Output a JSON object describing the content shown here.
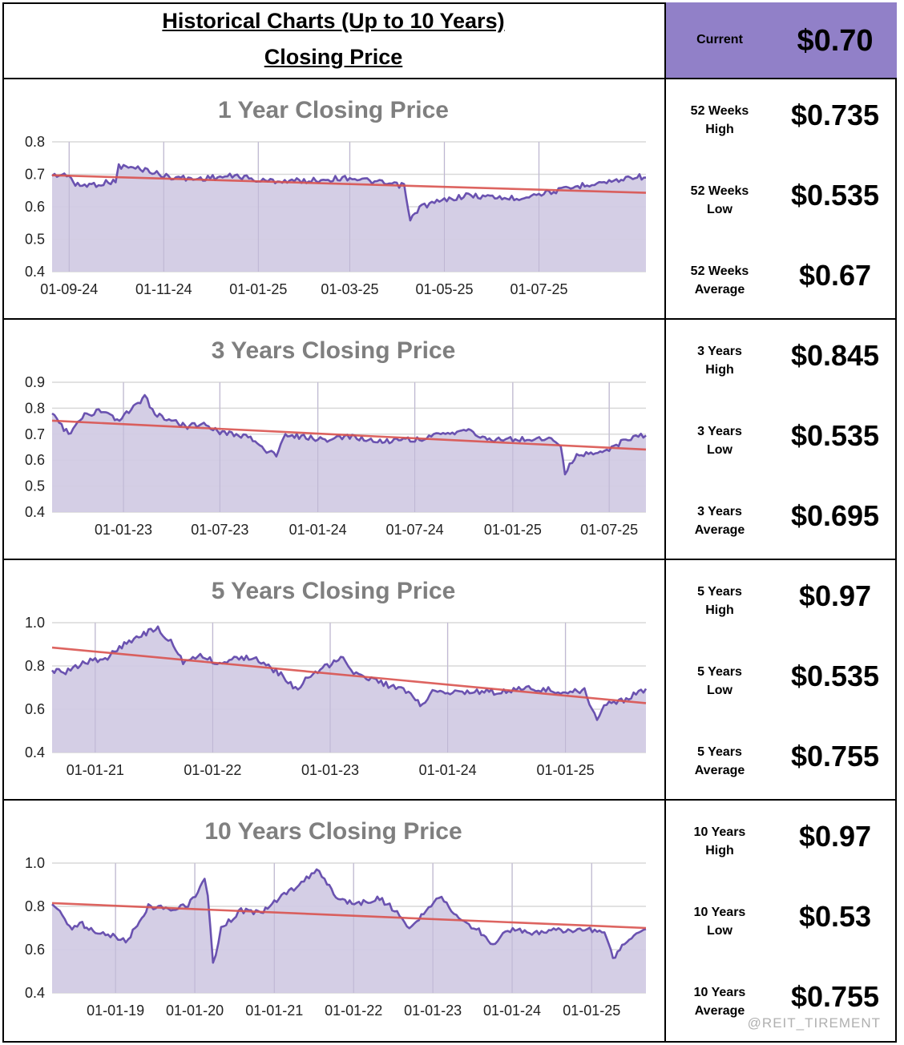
{
  "header": {
    "title_line1": "Historical Charts (Up to 10 Years)",
    "title_line2": "Closing Price",
    "current_label": "Current",
    "current_value": "$0.70",
    "accent_color": "#9180c8"
  },
  "watermark": "@REIT_TIREMENT",
  "colors": {
    "line": "#6a52b0",
    "fill": "#d2cbe4",
    "trend": "#d9534f",
    "grid": "#d9d9d9"
  },
  "rows": [
    {
      "title": "1 Year Closing Price",
      "stats": [
        {
          "label1": "52 Weeks",
          "label2": "High",
          "value": "$0.735"
        },
        {
          "label1": "52 Weeks",
          "label2": "Low",
          "value": "$0.535"
        },
        {
          "label1": "52 Weeks",
          "label2": "Average",
          "value": "$0.67"
        }
      ]
    },
    {
      "title": "3 Years Closing Price",
      "stats": [
        {
          "label1": "3 Years",
          "label2": "High",
          "value": "$0.845"
        },
        {
          "label1": "3 Years",
          "label2": "Low",
          "value": "$0.535"
        },
        {
          "label1": "3 Years",
          "label2": "Average",
          "value": "$0.695"
        }
      ]
    },
    {
      "title": "5 Years Closing Price",
      "stats": [
        {
          "label1": "5 Years",
          "label2": "High",
          "value": "$0.97"
        },
        {
          "label1": "5 Years",
          "label2": "Low",
          "value": "$0.535"
        },
        {
          "label1": "5 Years",
          "label2": "Average",
          "value": "$0.755"
        }
      ]
    },
    {
      "title": "10 Years Closing Price",
      "stats": [
        {
          "label1": "10 Years",
          "label2": "High",
          "value": "$0.97"
        },
        {
          "label1": "10 Years",
          "label2": "Low",
          "value": "$0.53"
        },
        {
          "label1": "10 Years",
          "label2": "Average",
          "value": "$0.755"
        }
      ]
    }
  ],
  "chart_data": [
    {
      "type": "area",
      "title": "1 Year Closing Price",
      "ylim": [
        0.4,
        0.8
      ],
      "yticks": [
        "0.4",
        "0.5",
        "0.6",
        "0.7",
        "0.8"
      ],
      "xlim": [
        "2024-08-21",
        "2025-09-08"
      ],
      "xticks": [
        {
          "label": "01-09-24",
          "x": "2024-09-01"
        },
        {
          "label": "01-11-24",
          "x": "2024-11-01"
        },
        {
          "label": "01-01-25",
          "x": "2025-01-01"
        },
        {
          "label": "01-03-25",
          "x": "2025-03-01"
        },
        {
          "label": "01-05-25",
          "x": "2025-05-01"
        },
        {
          "label": "01-07-25",
          "x": "2025-07-01"
        }
      ],
      "series": [
        {
          "points": [
            [
              "2024-08-21",
              0.695
            ],
            [
              "2024-09-01",
              0.7
            ],
            [
              "2024-09-05",
              0.665
            ],
            [
              "2024-09-20",
              0.67
            ],
            [
              "2024-10-01",
              0.68
            ],
            [
              "2024-10-03",
              0.725
            ],
            [
              "2024-10-20",
              0.715
            ],
            [
              "2024-11-01",
              0.695
            ],
            [
              "2024-11-20",
              0.685
            ],
            [
              "2024-12-01",
              0.69
            ],
            [
              "2024-12-20",
              0.695
            ],
            [
              "2025-01-01",
              0.68
            ],
            [
              "2025-02-01",
              0.68
            ],
            [
              "2025-03-01",
              0.69
            ],
            [
              "2025-03-25",
              0.67
            ],
            [
              "2025-04-05",
              0.665
            ],
            [
              "2025-04-09",
              0.555
            ],
            [
              "2025-04-15",
              0.6
            ],
            [
              "2025-05-01",
              0.62
            ],
            [
              "2025-05-15",
              0.635
            ],
            [
              "2025-06-01",
              0.63
            ],
            [
              "2025-06-15",
              0.625
            ],
            [
              "2025-07-01",
              0.64
            ],
            [
              "2025-07-20",
              0.655
            ],
            [
              "2025-08-01",
              0.67
            ],
            [
              "2025-08-20",
              0.68
            ],
            [
              "2025-09-01",
              0.695
            ],
            [
              "2025-09-08",
              0.69
            ]
          ]
        }
      ],
      "trend": [
        [
          "2024-08-21",
          0.697
        ],
        [
          "2025-09-08",
          0.643
        ]
      ]
    },
    {
      "type": "area",
      "title": "3 Years Closing Price",
      "ylim": [
        0.4,
        0.9
      ],
      "yticks": [
        "0.4",
        "0.5",
        "0.6",
        "0.7",
        "0.8",
        "0.9"
      ],
      "xlim": [
        "2022-08-20",
        "2025-09-08"
      ],
      "xticks": [
        {
          "label": "01-01-23",
          "x": "2023-01-01"
        },
        {
          "label": "01-07-23",
          "x": "2023-07-01"
        },
        {
          "label": "01-01-24",
          "x": "2024-01-01"
        },
        {
          "label": "01-07-24",
          "x": "2024-07-01"
        },
        {
          "label": "01-01-25",
          "x": "2025-01-01"
        },
        {
          "label": "01-07-25",
          "x": "2025-07-01"
        }
      ],
      "series": [
        {
          "points": [
            [
              "2022-08-20",
              0.78
            ],
            [
              "2022-09-20",
              0.7
            ],
            [
              "2022-10-20",
              0.77
            ],
            [
              "2022-11-20",
              0.79
            ],
            [
              "2022-12-20",
              0.75
            ],
            [
              "2023-01-20",
              0.8
            ],
            [
              "2023-02-10",
              0.845
            ],
            [
              "2023-03-01",
              0.78
            ],
            [
              "2023-04-01",
              0.75
            ],
            [
              "2023-05-01",
              0.73
            ],
            [
              "2023-06-01",
              0.74
            ],
            [
              "2023-07-01",
              0.71
            ],
            [
              "2023-08-01",
              0.7
            ],
            [
              "2023-09-01",
              0.68
            ],
            [
              "2023-10-01",
              0.63
            ],
            [
              "2023-10-15",
              0.615
            ],
            [
              "2023-11-01",
              0.7
            ],
            [
              "2023-12-01",
              0.69
            ],
            [
              "2024-01-01",
              0.68
            ],
            [
              "2024-02-01",
              0.68
            ],
            [
              "2024-03-01",
              0.69
            ],
            [
              "2024-04-01",
              0.68
            ],
            [
              "2024-05-01",
              0.67
            ],
            [
              "2024-06-01",
              0.68
            ],
            [
              "2024-07-01",
              0.68
            ],
            [
              "2024-08-01",
              0.69
            ],
            [
              "2024-09-01",
              0.7
            ],
            [
              "2024-10-01",
              0.72
            ],
            [
              "2024-11-01",
              0.69
            ],
            [
              "2024-12-01",
              0.68
            ],
            [
              "2025-01-01",
              0.68
            ],
            [
              "2025-02-01",
              0.68
            ],
            [
              "2025-03-01",
              0.685
            ],
            [
              "2025-04-01",
              0.66
            ],
            [
              "2025-04-09",
              0.555
            ],
            [
              "2025-05-01",
              0.62
            ],
            [
              "2025-06-01",
              0.625
            ],
            [
              "2025-07-01",
              0.64
            ],
            [
              "2025-08-01",
              0.68
            ],
            [
              "2025-09-08",
              0.695
            ]
          ]
        }
      ],
      "trend": [
        [
          "2022-08-20",
          0.752
        ],
        [
          "2025-09-08",
          0.641
        ]
      ]
    },
    {
      "type": "area",
      "title": "5 Years Closing Price",
      "ylim": [
        0.4,
        1.0
      ],
      "yticks": [
        "0.4",
        "0.6",
        "0.8",
        "1.0"
      ],
      "xlim": [
        "2020-08-20",
        "2025-09-08"
      ],
      "xticks": [
        {
          "label": "01-01-21",
          "x": "2021-01-01"
        },
        {
          "label": "01-01-22",
          "x": "2022-01-01"
        },
        {
          "label": "01-01-23",
          "x": "2023-01-01"
        },
        {
          "label": "01-01-24",
          "x": "2024-01-01"
        },
        {
          "label": "01-01-25",
          "x": "2025-01-01"
        }
      ],
      "series": [
        {
          "points": [
            [
              "2020-08-20",
              0.78
            ],
            [
              "2020-10-01",
              0.77
            ],
            [
              "2020-12-01",
              0.82
            ],
            [
              "2021-02-01",
              0.83
            ],
            [
              "2021-04-01",
              0.9
            ],
            [
              "2021-06-01",
              0.95
            ],
            [
              "2021-07-15",
              0.97
            ],
            [
              "2021-09-01",
              0.9
            ],
            [
              "2021-10-01",
              0.82
            ],
            [
              "2021-12-01",
              0.85
            ],
            [
              "2022-01-15",
              0.81
            ],
            [
              "2022-03-01",
              0.83
            ],
            [
              "2022-05-01",
              0.84
            ],
            [
              "2022-07-01",
              0.79
            ],
            [
              "2022-08-01",
              0.76
            ],
            [
              "2022-09-15",
              0.69
            ],
            [
              "2022-11-01",
              0.76
            ],
            [
              "2022-12-01",
              0.78
            ],
            [
              "2023-02-10",
              0.845
            ],
            [
              "2023-03-15",
              0.77
            ],
            [
              "2023-05-01",
              0.74
            ],
            [
              "2023-07-01",
              0.71
            ],
            [
              "2023-09-01",
              0.68
            ],
            [
              "2023-10-15",
              0.615
            ],
            [
              "2023-11-15",
              0.7
            ],
            [
              "2024-01-01",
              0.68
            ],
            [
              "2024-04-01",
              0.68
            ],
            [
              "2024-07-01",
              0.68
            ],
            [
              "2024-09-01",
              0.7
            ],
            [
              "2024-11-01",
              0.69
            ],
            [
              "2025-01-01",
              0.68
            ],
            [
              "2025-03-01",
              0.685
            ],
            [
              "2025-04-09",
              0.555
            ],
            [
              "2025-05-01",
              0.62
            ],
            [
              "2025-07-01",
              0.64
            ],
            [
              "2025-09-08",
              0.695
            ]
          ]
        }
      ],
      "trend": [
        [
          "2020-08-20",
          0.885
        ],
        [
          "2025-09-08",
          0.628
        ]
      ]
    },
    {
      "type": "area",
      "title": "10 Years Closing Price",
      "ylim": [
        0.4,
        1.0
      ],
      "yticks": [
        "0.4",
        "0.6",
        "0.8",
        "1.0"
      ],
      "xlim": [
        "2018-03-15",
        "2025-09-08"
      ],
      "xticks": [
        {
          "label": "01-01-19",
          "x": "2019-01-01"
        },
        {
          "label": "01-01-20",
          "x": "2020-01-01"
        },
        {
          "label": "01-01-21",
          "x": "2021-01-01"
        },
        {
          "label": "01-01-22",
          "x": "2022-01-01"
        },
        {
          "label": "01-01-23",
          "x": "2023-01-01"
        },
        {
          "label": "01-01-24",
          "x": "2024-01-01"
        },
        {
          "label": "01-01-25",
          "x": "2025-01-01"
        }
      ],
      "series": [
        {
          "points": [
            [
              "2018-03-15",
              0.81
            ],
            [
              "2018-05-01",
              0.76
            ],
            [
              "2018-06-15",
              0.7
            ],
            [
              "2018-08-01",
              0.72
            ],
            [
              "2018-10-01",
              0.68
            ],
            [
              "2019-01-01",
              0.66
            ],
            [
              "2019-03-01",
              0.64
            ],
            [
              "2019-04-01",
              0.7
            ],
            [
              "2019-06-01",
              0.8
            ],
            [
              "2019-09-01",
              0.79
            ],
            [
              "2019-12-01",
              0.8
            ],
            [
              "2020-01-15",
              0.87
            ],
            [
              "2020-02-15",
              0.92
            ],
            [
              "2020-03-01",
              0.85
            ],
            [
              "2020-03-25",
              0.53
            ],
            [
              "2020-05-01",
              0.7
            ],
            [
              "2020-08-01",
              0.78
            ],
            [
              "2020-11-01",
              0.77
            ],
            [
              "2021-01-01",
              0.82
            ],
            [
              "2021-04-01",
              0.88
            ],
            [
              "2021-07-15",
              0.97
            ],
            [
              "2021-09-01",
              0.9
            ],
            [
              "2021-11-01",
              0.83
            ],
            [
              "2022-01-15",
              0.81
            ],
            [
              "2022-05-01",
              0.84
            ],
            [
              "2022-08-01",
              0.76
            ],
            [
              "2022-09-15",
              0.69
            ],
            [
              "2022-12-01",
              0.78
            ],
            [
              "2023-02-10",
              0.845
            ],
            [
              "2023-05-01",
              0.74
            ],
            [
              "2023-08-01",
              0.69
            ],
            [
              "2023-10-15",
              0.615
            ],
            [
              "2023-12-01",
              0.69
            ],
            [
              "2024-04-01",
              0.68
            ],
            [
              "2024-08-01",
              0.69
            ],
            [
              "2024-12-01",
              0.69
            ],
            [
              "2025-03-01",
              0.685
            ],
            [
              "2025-04-09",
              0.555
            ],
            [
              "2025-06-01",
              0.63
            ],
            [
              "2025-09-08",
              0.695
            ]
          ]
        }
      ],
      "trend": [
        [
          "2018-03-15",
          0.815
        ],
        [
          "2025-09-08",
          0.7
        ]
      ]
    }
  ]
}
